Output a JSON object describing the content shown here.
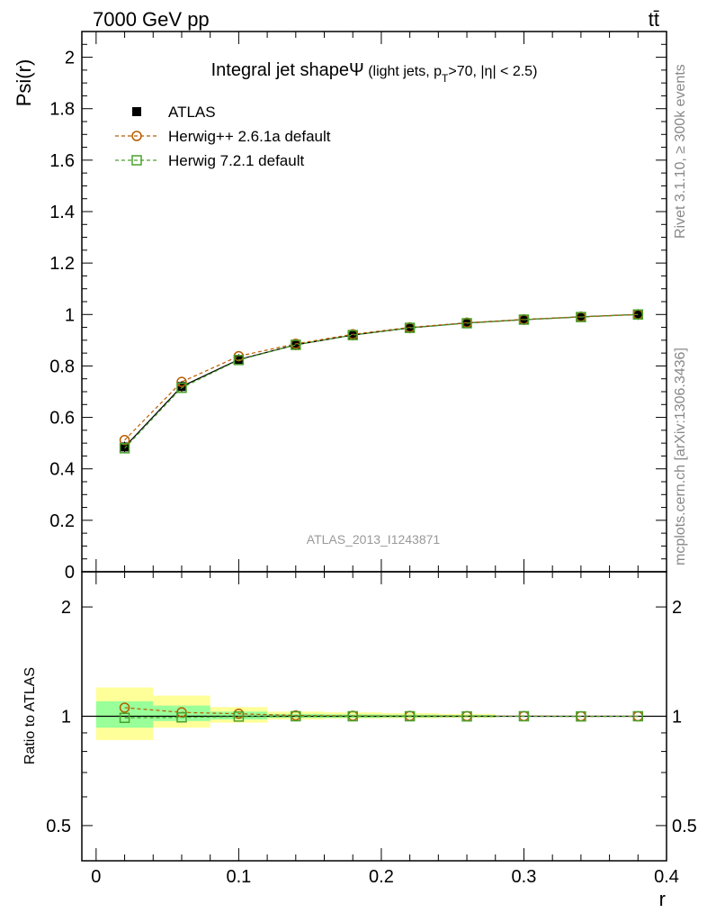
{
  "header": {
    "energy": "7000 GeV pp",
    "process": "tt̄"
  },
  "side_labels": {
    "rivet": "Rivet 3.1.10, ≥ 300k events",
    "mcplots": "mcplots.cern.ch [arXiv:1306.3436]"
  },
  "watermark": "ATLAS_2013_I1243871",
  "chart_data": [
    {
      "type": "line",
      "panel": "main",
      "title_main": "Integral jet shape",
      "title_symbol": "Ψ",
      "title_sub_a": " (light jets, p",
      "title_sub_sub": "T",
      "title_sub_b": ">70, |η| < 2.5)",
      "ylabel": "Psi(r)",
      "xlim": [
        -0.01,
        0.4
      ],
      "ylim": [
        0,
        2.1
      ],
      "yticks": [
        {
          "v": 0,
          "label": "0"
        },
        {
          "v": 0.2,
          "label": "0.2"
        },
        {
          "v": 0.4,
          "label": "0.4"
        },
        {
          "v": 0.6,
          "label": "0.6"
        },
        {
          "v": 0.8,
          "label": "0.8"
        },
        {
          "v": 1,
          "label": "1"
        },
        {
          "v": 1.2,
          "label": "1.2"
        },
        {
          "v": 1.4,
          "label": "1.4"
        },
        {
          "v": 1.6,
          "label": "1.6"
        },
        {
          "v": 1.8,
          "label": "1.8"
        },
        {
          "v": 2,
          "label": "2"
        }
      ],
      "legend_position": "top-left",
      "x": [
        0.02,
        0.06,
        0.1,
        0.14,
        0.18,
        0.22,
        0.26,
        0.3,
        0.34,
        0.38
      ],
      "series": [
        {
          "name": "ATLAS",
          "color": "#000000",
          "marker": "filled-square",
          "values": [
            0.485,
            0.72,
            0.825,
            0.882,
            0.92,
            0.948,
            0.967,
            0.98,
            0.991,
            1.0
          ]
        },
        {
          "name": "Herwig++ 2.6.1a default",
          "color": "#b85c00",
          "marker": "open-circle",
          "values": [
            0.512,
            0.738,
            0.838,
            0.886,
            0.923,
            0.95,
            0.968,
            0.981,
            0.991,
            1.0
          ]
        },
        {
          "name": "Herwig 7.2.1 default",
          "color": "#4aa02c",
          "marker": "open-square",
          "values": [
            0.48,
            0.715,
            0.823,
            0.882,
            0.92,
            0.948,
            0.966,
            0.98,
            0.99,
            1.0
          ]
        }
      ]
    },
    {
      "type": "line",
      "panel": "ratio",
      "ylabel": "Ratio to ATLAS",
      "xlabel": "r",
      "ylog": true,
      "xlim": [
        -0.01,
        0.4
      ],
      "ylim": [
        0.4,
        2.5
      ],
      "xticks": [
        {
          "v": 0,
          "label": "0"
        },
        {
          "v": 0.1,
          "label": "0.1"
        },
        {
          "v": 0.2,
          "label": "0.2"
        },
        {
          "v": 0.3,
          "label": "0.3"
        },
        {
          "v": 0.4,
          "label": "0.4"
        }
      ],
      "yticks": [
        {
          "v": 0.5,
          "label": "0.5"
        },
        {
          "v": 1,
          "label": "1"
        },
        {
          "v": 2,
          "label": "2"
        }
      ],
      "bands": [
        {
          "x0": 0.0,
          "x1": 0.04,
          "yellow": [
            0.86,
            1.2
          ],
          "green": [
            0.93,
            1.1
          ]
        },
        {
          "x0": 0.04,
          "x1": 0.08,
          "yellow": [
            0.93,
            1.14
          ],
          "green": [
            0.97,
            1.07
          ]
        },
        {
          "x0": 0.08,
          "x1": 0.12,
          "yellow": [
            0.96,
            1.06
          ],
          "green": [
            0.98,
            1.03
          ]
        },
        {
          "x0": 0.12,
          "x1": 0.16,
          "yellow": [
            0.98,
            1.03
          ],
          "green": [
            0.99,
            1.015
          ]
        },
        {
          "x0": 0.16,
          "x1": 0.2,
          "yellow": [
            0.985,
            1.025
          ],
          "green": [
            0.99,
            1.012
          ]
        },
        {
          "x0": 0.2,
          "x1": 0.24,
          "yellow": [
            0.987,
            1.02
          ],
          "green": [
            0.993,
            1.01
          ]
        },
        {
          "x0": 0.24,
          "x1": 0.28,
          "yellow": [
            0.99,
            1.015
          ],
          "green": [
            0.995,
            1.008
          ]
        }
      ],
      "x": [
        0.02,
        0.06,
        0.1,
        0.14,
        0.18,
        0.22,
        0.26,
        0.3,
        0.34,
        0.38
      ],
      "series": [
        {
          "name": "Herwig++ 2.6.1a default",
          "color": "#b85c00",
          "marker": "open-circle",
          "values": [
            1.056,
            1.025,
            1.016,
            1.005,
            1.003,
            1.002,
            1.001,
            1.001,
            1.0,
            1.0
          ]
        },
        {
          "name": "Herwig 7.2.1 default",
          "color": "#4aa02c",
          "marker": "open-square",
          "values": [
            0.99,
            0.993,
            0.998,
            1.0,
            1.0,
            1.0,
            0.999,
            1.0,
            0.999,
            1.0
          ]
        }
      ]
    }
  ]
}
